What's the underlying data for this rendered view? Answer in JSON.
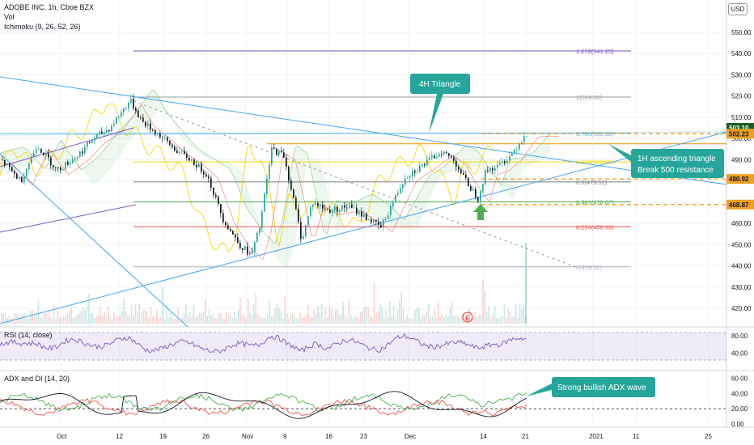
{
  "header": {
    "symbol": "ADOBE INC, 1h, Cboe BZX",
    "vol": "Vol",
    "ichimoku": "Ichimoku (9, 26, 52, 26)",
    "currency": "USD"
  },
  "price_axis": {
    "labels": [
      "550.00",
      "540.00",
      "530.00",
      "520.00",
      "510.00",
      "500.00",
      "490.00",
      "470.00",
      "460.00",
      "450.00",
      "440.00",
      "430.00",
      "420.00"
    ]
  },
  "price_tags": {
    "last": "503.10",
    "level1": "502.23",
    "level2": "480.92",
    "level3": "468.87"
  },
  "colors": {
    "last": "#26a69a",
    "orange": "#f0a020",
    "fib0786": "#5cb8e0",
    "fib05": "#808080",
    "fib0382": "#4caf50",
    "fib0236": "#ef5350",
    "fib1272": "#7e57c2",
    "trend": "#42a5f5",
    "rsi": "#7e57c2",
    "adx_black": "#131722",
    "di_plus": "#4caf50",
    "di_minus": "#ef5350"
  },
  "fib": {
    "f1272": "1.272(541.25)",
    "f1": "1(519.50)",
    "f0786": "0.786(502.38)",
    "f0618": "0.618(488.95)",
    "f05": "0.5(479.51)",
    "f0382": "0.382(470.07)",
    "f0236": "0.236(458.39)",
    "f0": "0(439.52)"
  },
  "annotations": {
    "triangle4h": "4H Triangle",
    "asc_line1": "1H ascending triangle",
    "asc_line2": "Break 500 resistance",
    "adx_note": "Strong bullish ADX wave"
  },
  "rsi": {
    "title": "RSI (14, close)",
    "labels": [
      "80.00",
      "40.00"
    ]
  },
  "adx": {
    "title": "ADX and DI (14, 20)",
    "labels": [
      "60.00",
      "40.00",
      "20.00",
      "0.00"
    ]
  },
  "time_axis": [
    "Oct",
    "12",
    "19",
    "26",
    "Nov",
    "9",
    "16",
    "23",
    "Dec",
    "14",
    "21",
    "2021",
    "11",
    "25"
  ],
  "icons": {
    "arrow_up": "green-up-arrow-icon",
    "alert": "alert-circle-icon"
  }
}
